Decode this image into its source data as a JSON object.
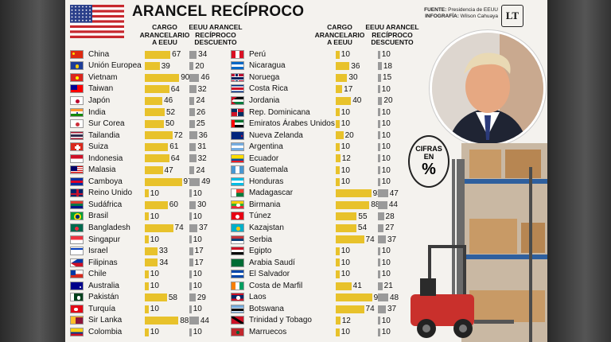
{
  "header": {
    "title": "ARANCEL RECÍPROCO",
    "source_label": "FUENTE:",
    "source_value": "Presidencia de EEUU",
    "infografia_label": "INFOGRAFÍA:",
    "infografia_value": "Wilson Cahuaya",
    "logo_text": "LT"
  },
  "columns": {
    "cargo": "CARGO ARANCELARIO A EEUU",
    "eeuu": "EEUU ARANCEL RECÍPROCO DESCUENTO"
  },
  "badge": {
    "line1": "CIFRAS",
    "line2": "EN",
    "symbol": "%"
  },
  "colors": {
    "cargo_bar": "#e8c22b",
    "eeuu_bar": "#9a9a9a"
  },
  "chart_data": {
    "type": "bar",
    "title": "ARANCEL RECÍPROCO",
    "series": [
      {
        "name": "CARGO ARANCELARIO A EEUU"
      },
      {
        "name": "EEUU ARANCEL RECÍPROCO DESCUENTO"
      }
    ],
    "left": [
      {
        "country": "China",
        "cargo": 67,
        "eeuu": 34,
        "flag": "cn"
      },
      {
        "country": "Unión Europea",
        "cargo": 39,
        "eeuu": 20,
        "flag": "eu"
      },
      {
        "country": "Vietnam",
        "cargo": 90,
        "eeuu": 46,
        "flag": "vn"
      },
      {
        "country": "Taiwan",
        "cargo": 64,
        "eeuu": 32,
        "flag": "tw"
      },
      {
        "country": "Japón",
        "cargo": 46,
        "eeuu": 24,
        "flag": "jp"
      },
      {
        "country": "India",
        "cargo": 52,
        "eeuu": 26,
        "flag": "in"
      },
      {
        "country": "Sur Corea",
        "cargo": 50,
        "eeuu": 25,
        "flag": "kr"
      },
      {
        "country": "Tailandia",
        "cargo": 72,
        "eeuu": 36,
        "flag": "th"
      },
      {
        "country": "Suiza",
        "cargo": 61,
        "eeuu": 31,
        "flag": "ch"
      },
      {
        "country": "Indonesia",
        "cargo": 64,
        "eeuu": 32,
        "flag": "id"
      },
      {
        "country": "Malasia",
        "cargo": 47,
        "eeuu": 24,
        "flag": "my"
      },
      {
        "country": "Camboya",
        "cargo": 97,
        "eeuu": 49,
        "flag": "kh"
      },
      {
        "country": "Reino Unido",
        "cargo": 10,
        "eeuu": 10,
        "flag": "gb"
      },
      {
        "country": "Sudáfrica",
        "cargo": 60,
        "eeuu": 30,
        "flag": "za"
      },
      {
        "country": "Brasil",
        "cargo": 10,
        "eeuu": 10,
        "flag": "br"
      },
      {
        "country": "Bangladesh",
        "cargo": 74,
        "eeuu": 37,
        "flag": "bd"
      },
      {
        "country": "Singapur",
        "cargo": 10,
        "eeuu": 10,
        "flag": "sg"
      },
      {
        "country": "Israel",
        "cargo": 33,
        "eeuu": 17,
        "flag": "il"
      },
      {
        "country": "Filipinas",
        "cargo": 34,
        "eeuu": 17,
        "flag": "ph"
      },
      {
        "country": "Chile",
        "cargo": 10,
        "eeuu": 10,
        "flag": "cl"
      },
      {
        "country": "Australia",
        "cargo": 10,
        "eeuu": 10,
        "flag": "au"
      },
      {
        "country": "Pakistán",
        "cargo": 58,
        "eeuu": 29,
        "flag": "pk"
      },
      {
        "country": "Turquía",
        "cargo": 10,
        "eeuu": 10,
        "flag": "tr"
      },
      {
        "country": "Sir Lanka",
        "cargo": 88,
        "eeuu": 44,
        "flag": "lk"
      },
      {
        "country": "Colombia",
        "cargo": 10,
        "eeuu": 10,
        "flag": "co"
      }
    ],
    "right": [
      {
        "country": "Perú",
        "cargo": 10,
        "eeuu": 10,
        "flag": "pe"
      },
      {
        "country": "Nicaragua",
        "cargo": 36,
        "eeuu": 18,
        "flag": "ni"
      },
      {
        "country": "Noruega",
        "cargo": 30,
        "eeuu": 15,
        "flag": "no"
      },
      {
        "country": "Costa Rica",
        "cargo": 17,
        "eeuu": 10,
        "flag": "cr"
      },
      {
        "country": "Jordania",
        "cargo": 40,
        "eeuu": 20,
        "flag": "jo"
      },
      {
        "country": "Rep. Dominicana",
        "cargo": 10,
        "eeuu": 10,
        "flag": "do"
      },
      {
        "country": "Emiratos Árabes Unidos",
        "cargo": 10,
        "eeuu": 10,
        "flag": "ae"
      },
      {
        "country": "Nueva Zelanda",
        "cargo": 20,
        "eeuu": 10,
        "flag": "nz"
      },
      {
        "country": "Argentina",
        "cargo": 10,
        "eeuu": 10,
        "flag": "ar"
      },
      {
        "country": "Ecuador",
        "cargo": 12,
        "eeuu": 10,
        "flag": "ec"
      },
      {
        "country": "Guatemala",
        "cargo": 10,
        "eeuu": 10,
        "flag": "gt"
      },
      {
        "country": "Honduras",
        "cargo": 10,
        "eeuu": 10,
        "flag": "hn"
      },
      {
        "country": "Madagascar",
        "cargo": 93,
        "eeuu": 47,
        "flag": "mg"
      },
      {
        "country": "Birmania",
        "cargo": 88,
        "eeuu": 44,
        "flag": "mm"
      },
      {
        "country": "Túnez",
        "cargo": 55,
        "eeuu": 28,
        "flag": "tn"
      },
      {
        "country": "Kazajstan",
        "cargo": 54,
        "eeuu": 27,
        "flag": "kz"
      },
      {
        "country": "Serbia",
        "cargo": 74,
        "eeuu": 37,
        "flag": "rs"
      },
      {
        "country": "Egipto",
        "cargo": 10,
        "eeuu": 10,
        "flag": "eg"
      },
      {
        "country": "Arabia Saudí",
        "cargo": 10,
        "eeuu": 10,
        "flag": "sa"
      },
      {
        "country": "El Salvador",
        "cargo": 10,
        "eeuu": 10,
        "flag": "sv"
      },
      {
        "country": "Costa de Marfil",
        "cargo": 41,
        "eeuu": 21,
        "flag": "ci"
      },
      {
        "country": "Laos",
        "cargo": 95,
        "eeuu": 48,
        "flag": "la"
      },
      {
        "country": "Botswana",
        "cargo": 74,
        "eeuu": 37,
        "flag": "bw"
      },
      {
        "country": "Trinidad y Tobago",
        "cargo": 12,
        "eeuu": 10,
        "flag": "tt"
      },
      {
        "country": "Marruecos",
        "cargo": 10,
        "eeuu": 10,
        "flag": "ma"
      }
    ]
  }
}
